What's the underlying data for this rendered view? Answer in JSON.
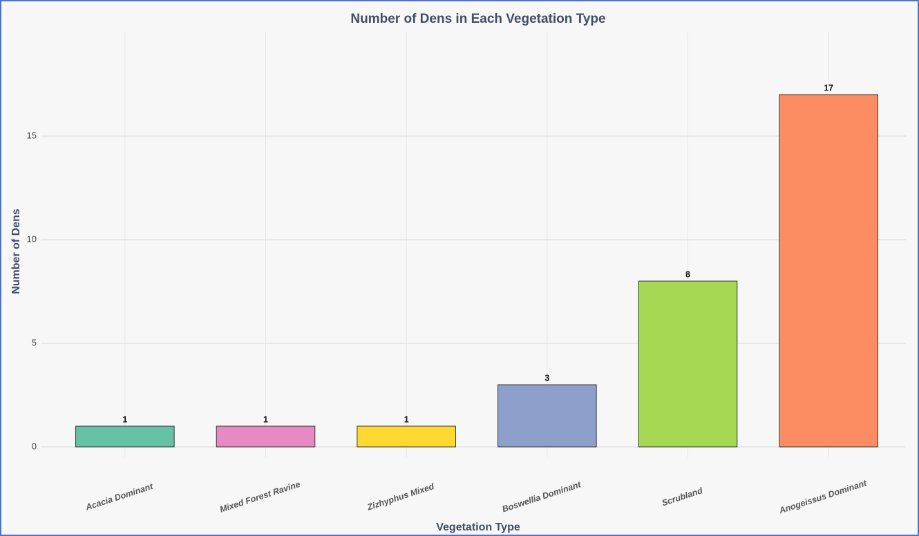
{
  "chart_data": {
    "type": "bar",
    "title": "Number of Dens in Each Vegetation Type",
    "x_label": "Vegetation Type",
    "y_label": "Number of Dens",
    "categories": [
      "Acacia Dominant",
      "Mixed Forest Ravine",
      "Zizhyphus Mixed",
      "Boswellia Dominant",
      "Scrubland",
      "Anogeissus Dominant"
    ],
    "values": [
      1,
      1,
      1,
      3,
      8,
      17
    ],
    "colors": [
      "#66c2a5",
      "#e78ac3",
      "#ffd92f",
      "#8da0cb",
      "#a6d854",
      "#fc8d62"
    ],
    "ylim": [
      -0.5,
      20
    ],
    "yticks": [
      0,
      5,
      10,
      15
    ],
    "grid": true
  }
}
